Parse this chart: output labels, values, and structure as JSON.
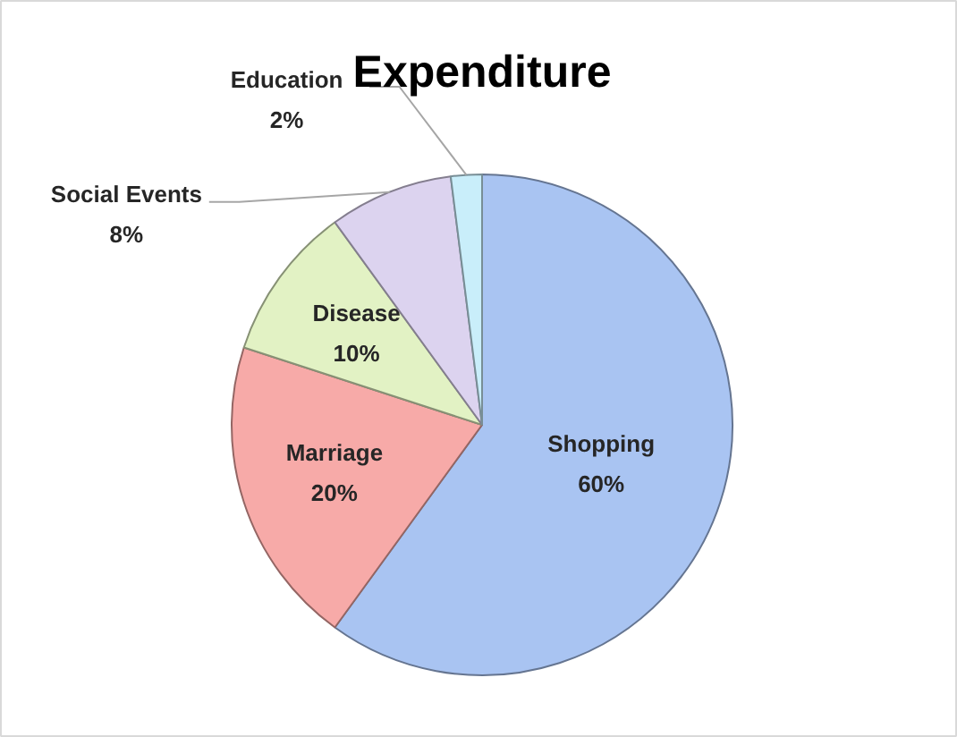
{
  "chart_data": {
    "type": "pie",
    "title": "Expenditure",
    "categories": [
      "Shopping",
      "Marriage",
      "Disease",
      "Social Events",
      "Education"
    ],
    "values": [
      60,
      20,
      10,
      8,
      2
    ],
    "colors": [
      "#a9c4f2",
      "#f7aaa8",
      "#e2f2c4",
      "#dcd3ef",
      "#c9eefa"
    ],
    "value_labels": [
      "60%",
      "20%",
      "10%",
      "8%",
      "2%"
    ]
  }
}
